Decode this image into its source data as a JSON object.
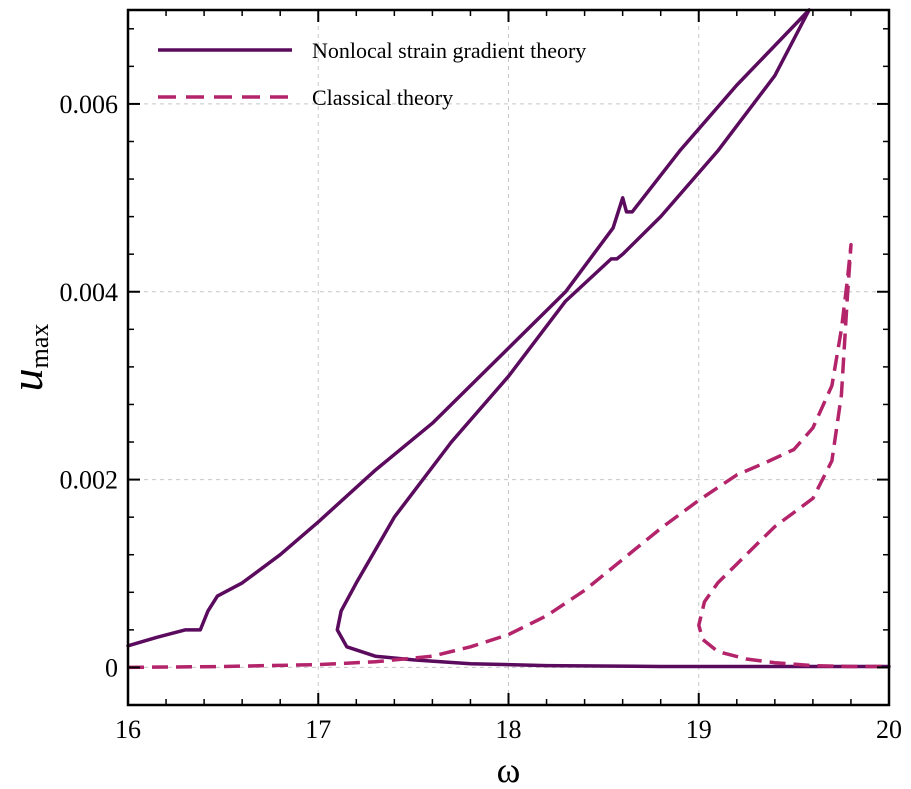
{
  "chart_data": {
    "type": "line",
    "title": "",
    "xlabel": "ω",
    "ylabel": {
      "main": "u",
      "subscript": "max"
    },
    "xlim": [
      16,
      20
    ],
    "ylim": [
      -0.0004,
      0.007
    ],
    "x_ticks": [
      16,
      17,
      18,
      19,
      20
    ],
    "x_tick_labels": [
      "16",
      "17",
      "18",
      "19",
      "20"
    ],
    "y_ticks": [
      0,
      0.002,
      0.004,
      0.006
    ],
    "y_tick_labels": [
      "0",
      "0.002",
      "0.004",
      "0.006"
    ],
    "grid": true,
    "legend_position": "top-left",
    "series": [
      {
        "name": "Nonlocal strain gradient theory",
        "style": "solid",
        "color": "#5b0b5e",
        "x": [
          16.0,
          16.15,
          16.3,
          16.38,
          16.42,
          16.47,
          16.6,
          16.8,
          17.0,
          17.3,
          17.6,
          18.0,
          18.3,
          18.55,
          18.6,
          18.62,
          18.65,
          18.9,
          19.2,
          19.58,
          19.4,
          19.1,
          18.8,
          18.6,
          18.57,
          18.54,
          18.3,
          18.0,
          17.7,
          17.4,
          17.2,
          17.12,
          17.1,
          17.15,
          17.3,
          17.5,
          17.8,
          18.2,
          18.8,
          19.5,
          20.0
        ],
        "y": [
          0.00023,
          0.00032,
          0.0004,
          0.0004,
          0.0006,
          0.00076,
          0.0009,
          0.0012,
          0.00155,
          0.0021,
          0.0026,
          0.0034,
          0.004,
          0.00468,
          0.005,
          0.00485,
          0.00485,
          0.0055,
          0.0062,
          0.007,
          0.0063,
          0.0055,
          0.0048,
          0.0044,
          0.00435,
          0.00435,
          0.0039,
          0.0031,
          0.0024,
          0.0016,
          0.0009,
          0.0006,
          0.0004,
          0.00022,
          0.00012,
          8e-05,
          4e-05,
          2e-05,
          1e-05,
          1e-05,
          1e-05
        ]
      },
      {
        "name": "Classical theory",
        "style": "dashed",
        "color": "#b3246b",
        "x": [
          16.0,
          16.5,
          17.0,
          17.3,
          17.6,
          17.8,
          18.0,
          18.2,
          18.4,
          18.6,
          18.8,
          19.0,
          19.2,
          19.35,
          19.5,
          19.6,
          19.7,
          19.75,
          19.78,
          19.8,
          19.78,
          19.75,
          19.7,
          19.6,
          19.5,
          19.4,
          19.3,
          19.2,
          19.1,
          19.03,
          19.0,
          19.02,
          19.1,
          19.25,
          19.4,
          19.6,
          19.8,
          20.0
        ],
        "y": [
          0.0,
          1e-05,
          3e-05,
          6e-05,
          0.00012,
          0.00022,
          0.00035,
          0.00055,
          0.00082,
          0.00115,
          0.00148,
          0.00178,
          0.00205,
          0.00218,
          0.00232,
          0.00255,
          0.003,
          0.0036,
          0.0041,
          0.0045,
          0.0039,
          0.0029,
          0.0022,
          0.0018,
          0.00165,
          0.0015,
          0.0013,
          0.0011,
          0.0009,
          0.0007,
          0.00045,
          0.0003,
          0.00017,
          9e-05,
          5e-05,
          2e-05,
          1e-05,
          1e-05
        ]
      }
    ]
  }
}
